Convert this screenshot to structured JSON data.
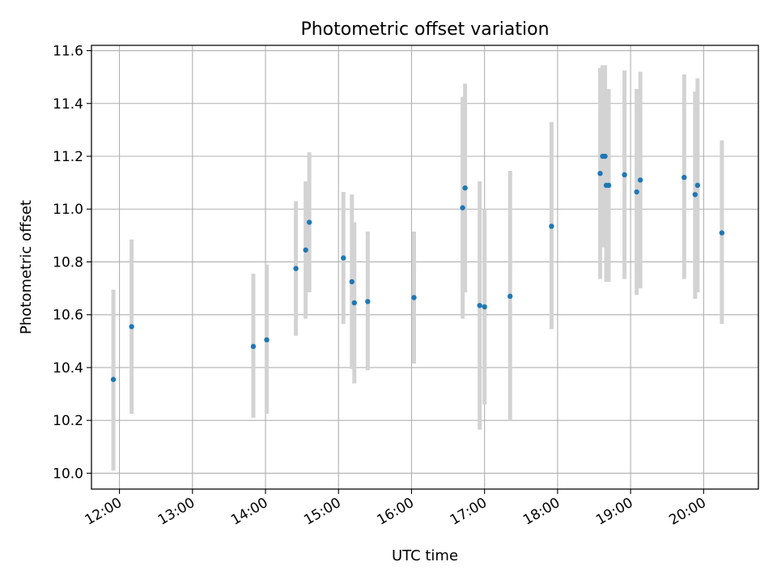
{
  "chart_data": {
    "type": "scatter",
    "title": "Photometric offset variation",
    "xlabel": "UTC time",
    "ylabel": "Photometric offset",
    "x_tick_labels": [
      "12:00",
      "13:00",
      "14:00",
      "15:00",
      "16:00",
      "17:00",
      "18:00",
      "19:00",
      "20:00"
    ],
    "y_ticks": [
      10.0,
      10.2,
      10.4,
      10.6,
      10.8,
      11.0,
      11.2,
      11.4,
      11.6
    ],
    "xlim": [
      "11:37",
      "20:45"
    ],
    "ylim": [
      9.94,
      11.62
    ],
    "grid": true,
    "colors": {
      "marker": "#1f77b4",
      "errorbar": "#d3d3d3",
      "grid": "#b0b0b0"
    },
    "points": [
      {
        "x": "11:55",
        "y": 10.355,
        "ylow": 10.01,
        "yhigh": 10.695
      },
      {
        "x": "12:10",
        "y": 10.555,
        "ylow": 10.225,
        "yhigh": 10.885
      },
      {
        "x": "13:50",
        "y": 10.48,
        "ylow": 10.21,
        "yhigh": 10.755
      },
      {
        "x": "14:01",
        "y": 10.505,
        "ylow": 10.225,
        "yhigh": 10.79
      },
      {
        "x": "14:25",
        "y": 10.775,
        "ylow": 10.52,
        "yhigh": 11.03
      },
      {
        "x": "14:33",
        "y": 10.845,
        "ylow": 10.585,
        "yhigh": 11.105
      },
      {
        "x": "14:36",
        "y": 10.95,
        "ylow": 10.685,
        "yhigh": 11.215
      },
      {
        "x": "15:04",
        "y": 10.815,
        "ylow": 10.565,
        "yhigh": 11.065
      },
      {
        "x": "15:11",
        "y": 10.725,
        "ylow": 10.395,
        "yhigh": 11.055
      },
      {
        "x": "15:13",
        "y": 10.645,
        "ylow": 10.34,
        "yhigh": 10.95
      },
      {
        "x": "15:24",
        "y": 10.65,
        "ylow": 10.39,
        "yhigh": 10.915
      },
      {
        "x": "16:02",
        "y": 10.665,
        "ylow": 10.415,
        "yhigh": 10.915
      },
      {
        "x": "16:42",
        "y": 11.005,
        "ylow": 10.585,
        "yhigh": 11.425
      },
      {
        "x": "16:44",
        "y": 11.08,
        "ylow": 10.685,
        "yhigh": 11.475
      },
      {
        "x": "16:56",
        "y": 10.635,
        "ylow": 10.165,
        "yhigh": 11.105
      },
      {
        "x": "17:00",
        "y": 10.63,
        "ylow": 10.26,
        "yhigh": 11.0
      },
      {
        "x": "17:21",
        "y": 10.67,
        "ylow": 10.2,
        "yhigh": 11.145
      },
      {
        "x": "17:55",
        "y": 10.935,
        "ylow": 10.545,
        "yhigh": 11.33
      },
      {
        "x": "18:35",
        "y": 11.135,
        "ylow": 10.735,
        "yhigh": 11.535
      },
      {
        "x": "18:37",
        "y": 11.2,
        "ylow": 10.855,
        "yhigh": 11.545
      },
      {
        "x": "18:39",
        "y": 11.2,
        "ylow": 10.855,
        "yhigh": 11.545
      },
      {
        "x": "18:40",
        "y": 11.09,
        "ylow": 10.725,
        "yhigh": 11.455
      },
      {
        "x": "18:42",
        "y": 11.09,
        "ylow": 10.725,
        "yhigh": 11.455
      },
      {
        "x": "18:55",
        "y": 11.13,
        "ylow": 10.735,
        "yhigh": 11.525
      },
      {
        "x": "19:05",
        "y": 11.065,
        "ylow": 10.675,
        "yhigh": 11.455
      },
      {
        "x": "19:08",
        "y": 11.11,
        "ylow": 10.7,
        "yhigh": 11.52
      },
      {
        "x": "19:44",
        "y": 11.12,
        "ylow": 10.735,
        "yhigh": 11.51
      },
      {
        "x": "19:53",
        "y": 11.055,
        "ylow": 10.66,
        "yhigh": 11.445
      },
      {
        "x": "19:55",
        "y": 11.09,
        "ylow": 10.685,
        "yhigh": 11.495
      },
      {
        "x": "20:15",
        "y": 10.91,
        "ylow": 10.565,
        "yhigh": 11.26
      }
    ]
  }
}
